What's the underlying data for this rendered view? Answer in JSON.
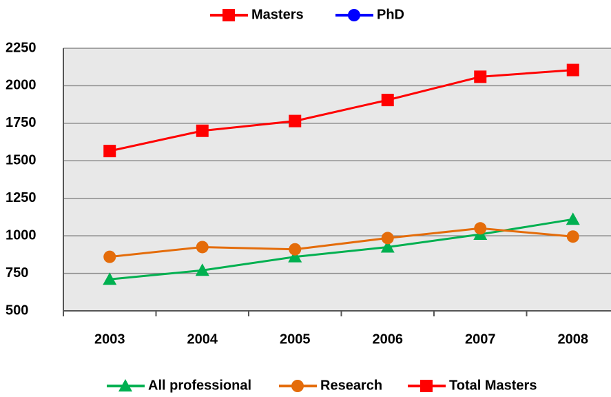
{
  "chart_data": {
    "type": "line",
    "categories": [
      "2003",
      "2004",
      "2005",
      "2006",
      "2007",
      "2008"
    ],
    "series": [
      {
        "name": "Masters",
        "color": "#ff0000",
        "marker": "square",
        "legend": "top",
        "values": [
          null,
          null,
          null,
          null,
          null,
          null
        ]
      },
      {
        "name": "PhD",
        "color": "#0000ff",
        "marker": "circle",
        "legend": "top",
        "values": [
          null,
          null,
          null,
          null,
          null,
          null
        ]
      },
      {
        "name": "All professional",
        "color": "#00b050",
        "marker": "triangle",
        "legend": "bottom",
        "values": [
          710,
          770,
          860,
          925,
          1010,
          1110
        ]
      },
      {
        "name": "Research",
        "color": "#e46c0a",
        "marker": "circle",
        "legend": "bottom",
        "values": [
          860,
          925,
          910,
          985,
          1050,
          995
        ]
      },
      {
        "name": "Total Masters",
        "color": "#ff0000",
        "marker": "square",
        "legend": "bottom",
        "values": [
          1565,
          1700,
          1765,
          1905,
          2060,
          2105
        ]
      }
    ],
    "ylim": [
      500,
      2250
    ],
    "yticks": [
      500,
      750,
      1000,
      1250,
      1500,
      1750,
      2000,
      2250
    ],
    "grid": true
  }
}
